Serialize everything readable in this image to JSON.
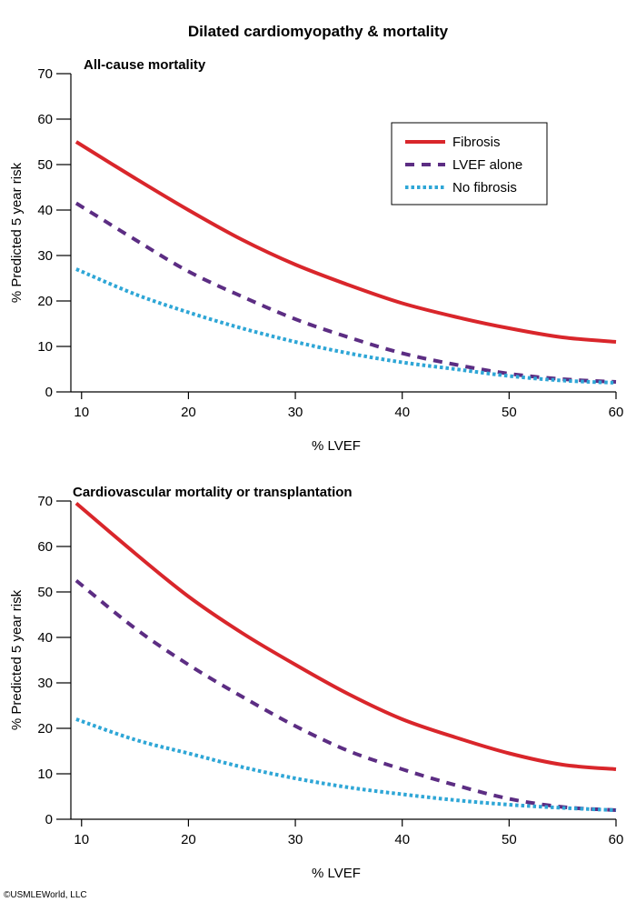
{
  "title": "Dilated cardiomyopathy & mortality",
  "copyright": "©USMLEWorld, LLC",
  "legend": [
    {
      "label": "Fibrosis",
      "style": "solid",
      "color": "#d9262b"
    },
    {
      "label": "LVEF alone",
      "style": "dashed",
      "color": "#5c2d83"
    },
    {
      "label": "No fibrosis",
      "style": "dotted",
      "color": "#2ea6d6"
    }
  ],
  "chart_data": [
    {
      "type": "line",
      "title": "All-cause mortality",
      "xlabel": "% LVEF",
      "ylabel": "% Predicted 5 year risk",
      "xlim": [
        9,
        60
      ],
      "ylim": [
        0,
        70
      ],
      "xticks": [
        10,
        20,
        30,
        40,
        50,
        60
      ],
      "yticks": [
        0,
        10,
        20,
        30,
        40,
        50,
        60,
        70
      ],
      "legend_position": "top-right",
      "grid": false,
      "series": [
        {
          "name": "Fibrosis",
          "style": "solid",
          "color": "#d9262b",
          "x": [
            9.5,
            15,
            20,
            25,
            30,
            35,
            40,
            45,
            50,
            55,
            60
          ],
          "y": [
            55,
            47,
            40,
            33.5,
            28,
            23.5,
            19.5,
            16.5,
            14,
            12,
            11
          ]
        },
        {
          "name": "LVEF alone",
          "style": "dashed",
          "color": "#5c2d83",
          "x": [
            9.5,
            15,
            20,
            25,
            30,
            35,
            40,
            45,
            50,
            55,
            60
          ],
          "y": [
            41.5,
            33.5,
            26.5,
            21,
            16,
            12,
            8.5,
            6,
            4,
            2.8,
            2.2
          ]
        },
        {
          "name": "No fibrosis",
          "style": "dotted",
          "color": "#2ea6d6",
          "x": [
            9.5,
            15,
            20,
            25,
            30,
            35,
            40,
            45,
            50,
            55,
            60
          ],
          "y": [
            27,
            21.5,
            17.5,
            14,
            11,
            8.5,
            6.5,
            5,
            3.5,
            2.5,
            2
          ]
        }
      ]
    },
    {
      "type": "line",
      "title": "Cardiovascular mortality or transplantation",
      "xlabel": "% LVEF",
      "ylabel": "% Predicted 5 year risk",
      "xlim": [
        9,
        60
      ],
      "ylim": [
        0,
        70
      ],
      "xticks": [
        10,
        20,
        30,
        40,
        50,
        60
      ],
      "yticks": [
        0,
        10,
        20,
        30,
        40,
        50,
        60,
        70
      ],
      "grid": false,
      "series": [
        {
          "name": "Fibrosis",
          "style": "solid",
          "color": "#d9262b",
          "x": [
            9.5,
            15,
            20,
            25,
            30,
            35,
            40,
            45,
            50,
            55,
            60
          ],
          "y": [
            69.5,
            58.5,
            49,
            41,
            34,
            27.5,
            22,
            18,
            14.5,
            12,
            11
          ]
        },
        {
          "name": "LVEF alone",
          "style": "dashed",
          "color": "#5c2d83",
          "x": [
            9.5,
            15,
            20,
            25,
            30,
            35,
            40,
            45,
            50,
            55,
            60
          ],
          "y": [
            52.5,
            42,
            34,
            27,
            20.5,
            15,
            11,
            7.5,
            4.5,
            2.7,
            2
          ]
        },
        {
          "name": "No fibrosis",
          "style": "dotted",
          "color": "#2ea6d6",
          "x": [
            9.5,
            15,
            20,
            25,
            30,
            35,
            40,
            45,
            50,
            55,
            60
          ],
          "y": [
            22,
            17.5,
            14.5,
            11.5,
            9,
            7,
            5.5,
            4.2,
            3.2,
            2.5,
            2
          ]
        }
      ]
    }
  ]
}
